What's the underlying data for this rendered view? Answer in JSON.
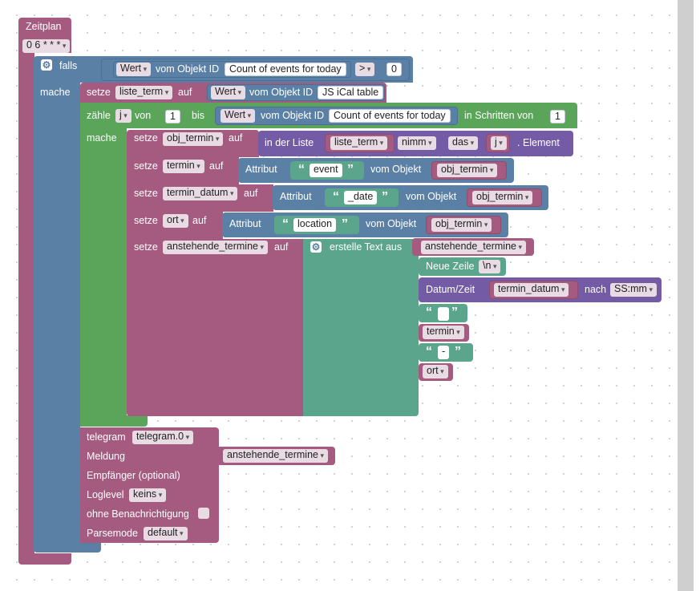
{
  "schedule": {
    "label": "Zeitplan",
    "cron": "0 6 * * *"
  },
  "if_block": {
    "label": "falls",
    "then_label": "mache",
    "value_field": "Wert",
    "object_label": "vom Objekt ID",
    "object_id": "Count of events for today",
    "operator": ">",
    "compare_value": "0"
  },
  "set_list": {
    "label": "setze",
    "var": "liste_term",
    "to": "auf",
    "value_field": "Wert",
    "object_label": "vom Objekt ID",
    "object_id": "JS iCal table"
  },
  "loop": {
    "label": "zähle",
    "var": "j",
    "from": "von",
    "from_value": "1",
    "to_label": "bis",
    "value_field": "Wert",
    "object_label": "vom Objekt ID",
    "object_id": "Count of events for today",
    "step_label": "in Schritten von",
    "step_value": "1",
    "do_label": "mache"
  },
  "set_obj": {
    "label": "setze",
    "var": "obj_termin",
    "to": "auf",
    "in_list": "in der Liste",
    "list_var": "liste_term",
    "mode": "nimm",
    "which": "das",
    "index_var": "j",
    "suffix": ". Element"
  },
  "set_termin": {
    "label": "setze",
    "var": "termin",
    "to": "auf",
    "attr": "Attribut",
    "attr_value": "event",
    "from_obj": "vom Objekt",
    "obj_var": "obj_termin"
  },
  "set_datum": {
    "label": "setze",
    "var": "termin_datum",
    "to": "auf",
    "attr": "Attribut",
    "attr_value": "_date",
    "from_obj": "vom Objekt",
    "obj_var": "obj_termin"
  },
  "set_ort": {
    "label": "setze",
    "var": "ort",
    "to": "auf",
    "attr": "Attribut",
    "attr_value": "location",
    "from_obj": "vom Objekt",
    "obj_var": "obj_termin"
  },
  "set_anst": {
    "label": "setze",
    "var": "anstehende_termine",
    "to": "auf",
    "create_text": "erstelle Text aus",
    "item_var": "anstehende_termine",
    "newline_label": "Neue Zeile",
    "newline_value": "\\n",
    "datetime_label": "Datum/Zeit",
    "datetime_var": "termin_datum",
    "after": "nach",
    "format": "SS:mm",
    "text_empty": "",
    "termin_var": "termin",
    "dash": "-",
    "ort_var": "ort"
  },
  "telegram": {
    "label": "telegram",
    "instance": "telegram.0",
    "message_label": "Meldung",
    "message_var": "anstehende_termine",
    "recipient_label": "Empfänger (optional)",
    "loglevel_label": "Loglevel",
    "loglevel_value": "keins",
    "silent_label": "ohne Benachrichtigung",
    "parse_label": "Parsemode",
    "parse_value": "default"
  },
  "colors": {
    "pink": "#a55b80",
    "blue": "#5b80a5",
    "green": "#5ba55b",
    "teal": "#5ba58c",
    "purple": "#745ba5"
  }
}
